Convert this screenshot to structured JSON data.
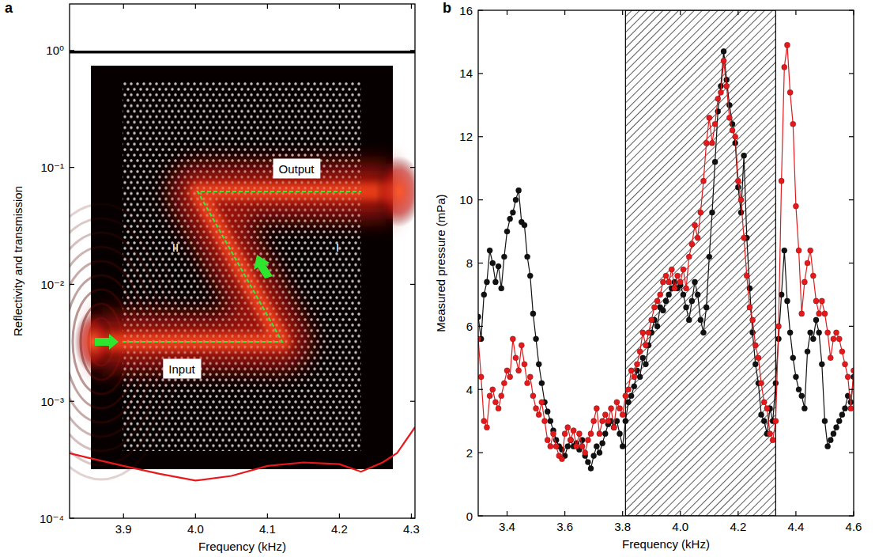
{
  "chart_data": [
    {
      "type": "line",
      "panel": "a",
      "log": "y",
      "x_label": "Frequency (kHz)",
      "y_label": "Reflectivity and transmission",
      "xlim": [
        3.825,
        4.305
      ],
      "xticks": [
        3.9,
        {
          "value": 4,
          "label": "4.0"
        },
        4.1,
        4.2,
        4.3
      ],
      "ylim": [
        0.0001,
        2.5
      ],
      "yticks": [
        {
          "value": 0.0001,
          "label": "10⁻⁴"
        },
        {
          "value": 0.001,
          "label": "10⁻³"
        },
        {
          "value": 0.01,
          "label": "10⁻²"
        },
        {
          "value": 0.1,
          "label": "10⁻¹"
        },
        {
          "value": 1,
          "label": "10⁰"
        }
      ],
      "annotations": [
        "Output",
        "Input",
        "II",
        "I"
      ],
      "series": [
        {
          "color": "#000000",
          "line_style": "solid",
          "x": [
            3.825,
            4.305
          ],
          "values": [
            0.97,
            0.97
          ]
        },
        {
          "color": "#e8191c",
          "line_style": "solid",
          "x": [
            3.825,
            3.85,
            3.9,
            3.95,
            4.0,
            4.05,
            4.1,
            4.15,
            4.2,
            4.23,
            4.26,
            4.28,
            4.305
          ],
          "values": [
            0.00036,
            0.00033,
            0.00028,
            0.00024,
            0.00021,
            0.00023,
            0.00028,
            0.0003,
            0.00029,
            0.00025,
            0.0003,
            0.00036,
            0.0006
          ]
        }
      ]
    },
    {
      "type": "line",
      "panel": "b",
      "x_label": "Frequency (kHz)",
      "y_label": "Measured pressure (mPa)",
      "xlim": [
        3.3,
        4.6
      ],
      "xticks": [
        3.4,
        3.6,
        3.8,
        {
          "value": 4,
          "label": "4.0"
        },
        4.2,
        4.4,
        4.6
      ],
      "ylim": [
        0,
        16
      ],
      "yticks": [
        0,
        2,
        4,
        6,
        8,
        10,
        12,
        14,
        16
      ],
      "band": [
        3.81,
        4.33
      ],
      "x": [
        3.3,
        3.31,
        3.32,
        3.33,
        3.34,
        3.35,
        3.36,
        3.37,
        3.38,
        3.39,
        3.4,
        3.41,
        3.42,
        3.43,
        3.44,
        3.45,
        3.46,
        3.47,
        3.48,
        3.49,
        3.5,
        3.51,
        3.52,
        3.53,
        3.54,
        3.55,
        3.56,
        3.57,
        3.58,
        3.59,
        3.6,
        3.61,
        3.62,
        3.63,
        3.64,
        3.65,
        3.66,
        3.67,
        3.68,
        3.69,
        3.7,
        3.71,
        3.72,
        3.73,
        3.74,
        3.75,
        3.76,
        3.77,
        3.78,
        3.79,
        3.8,
        3.81,
        3.82,
        3.83,
        3.84,
        3.85,
        3.86,
        3.87,
        3.88,
        3.89,
        3.9,
        3.91,
        3.92,
        3.93,
        3.94,
        3.95,
        3.96,
        3.97,
        3.98,
        3.99,
        4.0,
        4.01,
        4.02,
        4.03,
        4.04,
        4.05,
        4.06,
        4.07,
        4.08,
        4.09,
        4.1,
        4.11,
        4.12,
        4.13,
        4.14,
        4.15,
        4.16,
        4.17,
        4.18,
        4.19,
        4.2,
        4.21,
        4.22,
        4.23,
        4.24,
        4.25,
        4.26,
        4.27,
        4.28,
        4.29,
        4.3,
        4.31,
        4.32,
        4.33,
        4.34,
        4.35,
        4.36,
        4.37,
        4.38,
        4.39,
        4.4,
        4.41,
        4.42,
        4.43,
        4.44,
        4.45,
        4.46,
        4.47,
        4.48,
        4.49,
        4.5,
        4.51,
        4.52,
        4.53,
        4.54,
        4.55,
        4.56,
        4.57,
        4.58,
        4.59,
        4.6
      ],
      "series": [
        {
          "color": "#111111",
          "marker": "circle",
          "line_style": "solid",
          "values": [
            6.3,
            5.6,
            7.0,
            7.4,
            8.4,
            8.0,
            7.4,
            7.9,
            7.2,
            8.2,
            9.0,
            9.4,
            9.6,
            10.0,
            10.3,
            9.3,
            9.2,
            8.2,
            7.6,
            6.4,
            5.6,
            4.8,
            4.2,
            3.6,
            3.3,
            3.0,
            2.7,
            2.4,
            2.2,
            2.1,
            1.9,
            2.2,
            2.4,
            2.2,
            2.3,
            2.1,
            2.4,
            1.9,
            1.7,
            1.5,
            1.9,
            2.2,
            2.0,
            2.3,
            2.6,
            2.9,
            3.0,
            2.8,
            3.0,
            2.6,
            2.2,
            3.0,
            3.6,
            3.8,
            4.1,
            4.6,
            4.4,
            5.0,
            4.8,
            5.4,
            5.8,
            6.2,
            6.0,
            6.6,
            6.5,
            6.8,
            7.0,
            7.2,
            7.4,
            7.2,
            7.3,
            7.0,
            6.6,
            6.2,
            6.8,
            7.4,
            7.0,
            6.2,
            5.8,
            6.6,
            8.2,
            9.6,
            11.2,
            12.8,
            13.6,
            14.7,
            13.8,
            13.0,
            12.4,
            11.8,
            10.4,
            9.6,
            11.4,
            8.8,
            7.2,
            5.8,
            4.8,
            4.2,
            3.2,
            3.0,
            2.6,
            3.4,
            3.0,
            4.2,
            5.6,
            7.0,
            8.4,
            6.8,
            5.8,
            5.0,
            4.4,
            4.0,
            3.8,
            3.4,
            5.2,
            5.8,
            5.6,
            6.2,
            5.8,
            4.8,
            3.0,
            2.2,
            2.4,
            2.6,
            2.8,
            3.0,
            3.2,
            3.4,
            3.8,
            3.6,
            4.4
          ]
        },
        {
          "color": "#e31a1c",
          "marker": "circle",
          "line_style": "solid",
          "values": [
            5.6,
            4.4,
            3.0,
            2.8,
            3.8,
            4.0,
            3.6,
            3.4,
            3.8,
            4.2,
            4.6,
            4.4,
            5.6,
            5.0,
            4.6,
            5.4,
            4.8,
            4.2,
            4.4,
            3.8,
            3.4,
            3.2,
            3.6,
            3.0,
            2.4,
            2.2,
            2.6,
            2.2,
            1.9,
            1.8,
            2.6,
            2.8,
            2.4,
            2.7,
            2.2,
            2.6,
            2.2,
            2.0,
            2.4,
            2.6,
            3.0,
            3.4,
            2.6,
            3.0,
            3.2,
            3.0,
            3.4,
            2.8,
            3.6,
            3.4,
            3.2,
            3.8,
            4.0,
            4.6,
            4.4,
            4.8,
            5.2,
            5.8,
            5.4,
            5.8,
            6.2,
            6.6,
            6.8,
            7.0,
            7.4,
            7.6,
            7.4,
            7.8,
            7.2,
            7.6,
            7.4,
            7.8,
            7.2,
            8.2,
            8.6,
            9.2,
            8.8,
            9.6,
            10.6,
            11.8,
            12.6,
            11.8,
            12.4,
            13.2,
            13.4,
            14.4,
            13.6,
            12.6,
            12.2,
            12.0,
            10.6,
            10.0,
            8.8,
            7.6,
            6.6,
            6.2,
            5.4,
            5.0,
            4.2,
            3.6,
            3.4,
            2.6,
            2.4,
            3.0,
            6.0,
            10.6,
            14.2,
            14.9,
            13.4,
            12.4,
            9.8,
            8.4,
            6.4,
            7.4,
            8.0,
            8.4,
            7.6,
            6.8,
            6.4,
            6.8,
            6.4,
            5.8,
            5.0,
            5.6,
            5.8,
            5.6,
            5.2,
            4.8,
            4.4,
            3.4,
            4.6
          ]
        }
      ]
    }
  ]
}
